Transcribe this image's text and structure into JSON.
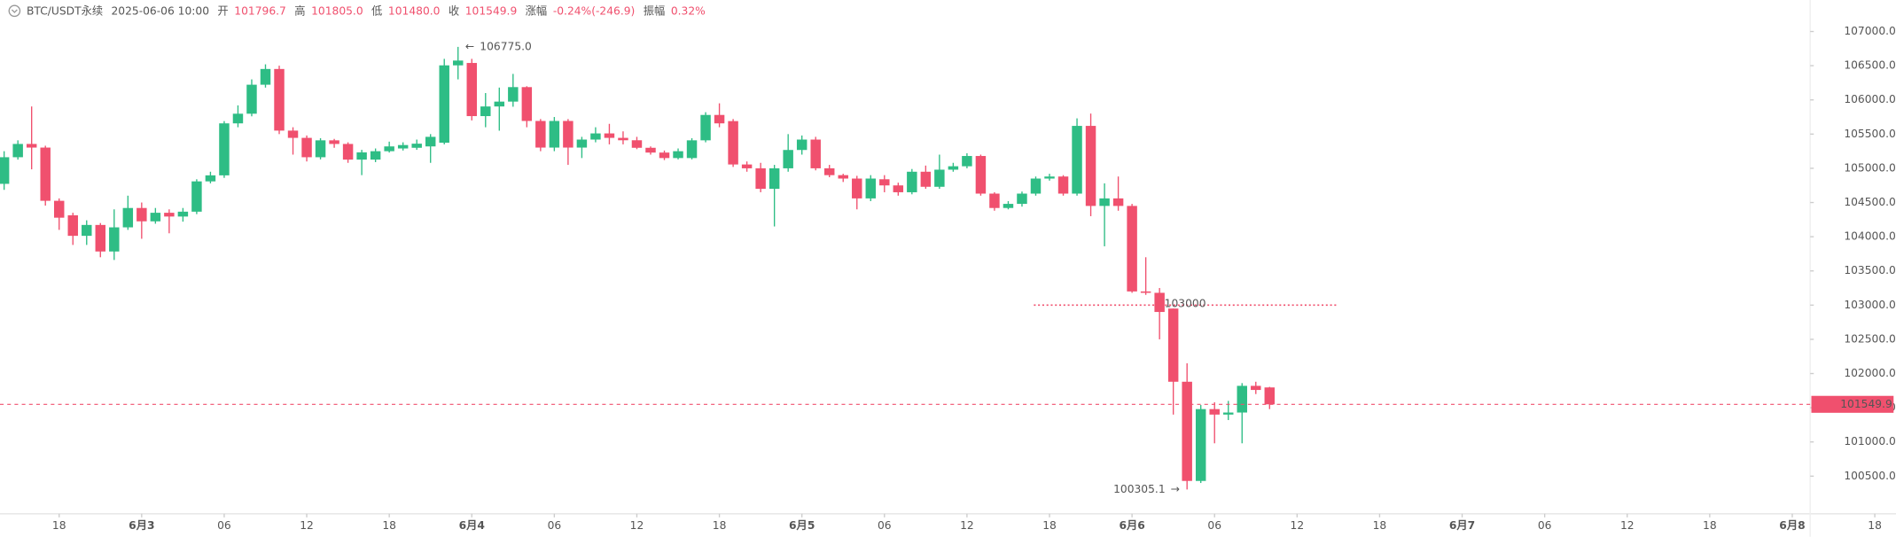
{
  "header": {
    "symbol": "BTC/USDT永续",
    "time": "2025-06-06 10:00",
    "open_label": "开",
    "open": "101796.7",
    "high_label": "高",
    "high": "101805.0",
    "low_label": "低",
    "low": "101480.0",
    "close_label": "收",
    "close": "101549.9",
    "change_label": "涨幅",
    "change": "-0.24%(-246.9)",
    "range_label": "振幅",
    "range": "0.32%"
  },
  "chart_data": {
    "type": "candlestick",
    "open": [
      104773,
      105162,
      105356,
      105303,
      104525,
      104313,
      104013,
      104172,
      103784,
      104137,
      104420,
      104225,
      104350,
      104295,
      104366,
      104809,
      104897,
      105657,
      105798,
      106222,
      106452,
      105551,
      105445,
      105162,
      105409,
      105356,
      105127,
      105127,
      105250,
      105290,
      105300,
      105320,
      105374,
      106505,
      106540,
      105763,
      105904,
      105975,
      106187,
      105692,
      105303,
      105692,
      105303,
      105420,
      105510,
      105445,
      105410,
      105300,
      105230,
      105150,
      105150,
      105409,
      105780,
      105690,
      105056,
      105000,
      104700,
      105000,
      105268,
      105420,
      105000,
      104900,
      104850,
      104560,
      104840,
      104750,
      104650,
      104950,
      104730,
      104980,
      105030,
      105180,
      104630,
      104420,
      104480,
      104630,
      104850,
      104880,
      104630,
      105620,
      104450,
      104560,
      104450,
      103200,
      103180,
      102950,
      101880,
      100430,
      101480,
      101400,
      101430,
      101820,
      101796.7
    ],
    "high": [
      105250,
      105409,
      105904,
      105330,
      104560,
      104350,
      104240,
      104200,
      104400,
      104600,
      104500,
      104420,
      104400,
      104420,
      104840,
      104950,
      105690,
      105920,
      106300,
      106520,
      106500,
      105600,
      105480,
      105440,
      105430,
      105380,
      105270,
      105290,
      105390,
      105380,
      105420,
      105500,
      106600,
      106775,
      106600,
      106100,
      106180,
      106380,
      106200,
      105720,
      105750,
      105720,
      105460,
      105600,
      105650,
      105540,
      105460,
      105320,
      105260,
      105290,
      105440,
      105820,
      105950,
      105720,
      105100,
      105080,
      105050,
      105500,
      105480,
      105460,
      105050,
      104920,
      104890,
      104900,
      104900,
      104790,
      104990,
      105040,
      105200,
      105080,
      105220,
      105200,
      104650,
      104520,
      104660,
      104880,
      104920,
      104900,
      105730,
      105800,
      104780,
      104880,
      104480,
      103700,
      103250,
      102950,
      102150,
      101540,
      101580,
      101600,
      101860,
      101880,
      101805
    ],
    "low": [
      104685,
      105127,
      104985,
      104455,
      104100,
      103880,
      103880,
      103700,
      103660,
      104100,
      103970,
      104190,
      104050,
      104220,
      104330,
      104780,
      104860,
      105600,
      105760,
      106180,
      105500,
      105200,
      105100,
      105130,
      105300,
      105080,
      104900,
      105090,
      105230,
      105260,
      105270,
      105080,
      105350,
      106300,
      105700,
      105600,
      105550,
      105900,
      105600,
      105250,
      105250,
      105050,
      105150,
      105380,
      105350,
      105350,
      105280,
      105200,
      105120,
      105130,
      105130,
      105380,
      105600,
      105020,
      104950,
      104650,
      104150,
      104950,
      105200,
      104970,
      104870,
      104800,
      104400,
      104520,
      104650,
      104600,
      104620,
      104700,
      104700,
      104950,
      105000,
      104600,
      104380,
      104400,
      104440,
      104600,
      104820,
      104600,
      104600,
      104300,
      103860,
      104380,
      103180,
      103150,
      102500,
      101400,
      100305.1,
      100400,
      100980,
      101320,
      100980,
      101700,
      101480
    ],
    "close": [
      105162,
      105356,
      105303,
      104525,
      104278,
      104013,
      104172,
      103784,
      104137,
      104420,
      104225,
      104350,
      104295,
      104366,
      104809,
      104897,
      105657,
      105798,
      106222,
      106452,
      105551,
      105445,
      105162,
      105409,
      105356,
      105127,
      105233,
      105250,
      105320,
      105340,
      105360,
      105460,
      106505,
      106575,
      105763,
      105904,
      105975,
      106187,
      105692,
      105303,
      105692,
      105303,
      105420,
      105510,
      105445,
      105410,
      105300,
      105230,
      105150,
      105250,
      105409,
      105780,
      105657,
      105056,
      105000,
      104700,
      105000,
      105268,
      105420,
      105000,
      104900,
      104850,
      104560,
      104850,
      104750,
      104650,
      104950,
      104730,
      104980,
      105030,
      105180,
      104630,
      104420,
      104480,
      104630,
      104850,
      104880,
      104630,
      105620,
      104450,
      104560,
      104450,
      103200,
      103180,
      102900,
      101880,
      100430,
      101480,
      101400,
      101430,
      101820,
      101760,
      101549.9
    ],
    "up_color": "#2ebd85",
    "down_color": "#f0506e",
    "xlim": [
      -0.3,
      131.3
    ],
    "xticks": [
      {
        "value": 4,
        "label": "18"
      },
      {
        "value": 10,
        "label": "6月3"
      },
      {
        "value": 16,
        "label": "06"
      },
      {
        "value": 22,
        "label": "12"
      },
      {
        "value": 28,
        "label": "18"
      },
      {
        "value": 34,
        "label": "6月4"
      },
      {
        "value": 40,
        "label": "06"
      },
      {
        "value": 46,
        "label": "12"
      },
      {
        "value": 52,
        "label": "18"
      },
      {
        "value": 58,
        "label": "6月5"
      },
      {
        "value": 64,
        "label": "06"
      },
      {
        "value": 70,
        "label": "12"
      },
      {
        "value": 76,
        "label": "18"
      },
      {
        "value": 82,
        "label": "6月6"
      },
      {
        "value": 88,
        "label": "06"
      },
      {
        "value": 94,
        "label": "12"
      },
      {
        "value": 100,
        "label": "18"
      },
      {
        "value": 106,
        "label": "6月7"
      },
      {
        "value": 112,
        "label": "06"
      },
      {
        "value": 118,
        "label": "12"
      },
      {
        "value": 124,
        "label": "18"
      },
      {
        "value": 130,
        "label": "6月8"
      },
      {
        "value": 136,
        "label": "18"
      }
    ],
    "ylim": [
      99950,
      107460
    ],
    "yticks": [
      {
        "value": 100500,
        "label": "100500.0"
      },
      {
        "value": 101000,
        "label": "101000.0"
      },
      {
        "value": 101500,
        "label": "101500.0"
      },
      {
        "value": 102000,
        "label": "102000.0"
      },
      {
        "value": 102500,
        "label": "102500.0"
      },
      {
        "value": 103000,
        "label": "103000.0"
      },
      {
        "value": 103500,
        "label": "103500.0"
      },
      {
        "value": 104000,
        "label": "104000.0"
      },
      {
        "value": 104500,
        "label": "104500.0"
      },
      {
        "value": 105000,
        "label": "105000.0"
      },
      {
        "value": 105500,
        "label": "105500.0"
      },
      {
        "value": 106000,
        "label": "106000.0"
      },
      {
        "value": 106500,
        "label": "106500.0"
      },
      {
        "value": 107000,
        "label": "107000.0"
      }
    ],
    "max_label": {
      "value": 106775,
      "label": "106775.0"
    },
    "min_label": 100305.1,
    "alert_line": 103000,
    "last_price": 101549.9
  }
}
